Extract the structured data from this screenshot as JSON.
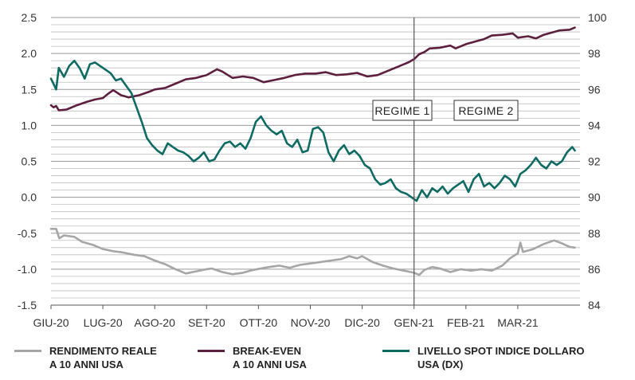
{
  "chart_data": {
    "type": "line",
    "title": "",
    "xlabel": "",
    "ylabel_left": "",
    "ylabel_right": "",
    "x_ticks": [
      "GIU-20",
      "LUG-20",
      "AGO-20",
      "SET-20",
      "OTT-20",
      "NOV-20",
      "DIC-20",
      "GEN-21",
      "FEB-21",
      "MAR-21"
    ],
    "y_left": {
      "ticks": [
        "2.5",
        "2.0",
        "1.5",
        "1.0",
        "0.5",
        "0.0",
        "-0.5",
        "-1.0",
        "-1.5"
      ],
      "range": [
        -1.5,
        2.5
      ]
    },
    "y_right": {
      "ticks": [
        "100",
        "98",
        "96",
        "94",
        "92",
        "90",
        "88",
        "86",
        "84"
      ],
      "range": [
        84,
        100
      ]
    },
    "grid": true,
    "x_range_months": [
      0,
      10.2
    ],
    "annotations": [
      {
        "id": "regime-1",
        "text": "REGIME 1",
        "x": 7.0
      },
      {
        "id": "regime-2",
        "text": "REGIME 2",
        "x": 7.0
      }
    ],
    "series": [
      {
        "name": "RENDIMENTO REALE\nA 10 ANNI USA",
        "axis": "left",
        "color": "#a6a6a6",
        "points": [
          [
            0,
            -0.44
          ],
          [
            0.1,
            -0.44
          ],
          [
            0.16,
            -0.57
          ],
          [
            0.25,
            -0.53
          ],
          [
            0.45,
            -0.55
          ],
          [
            0.6,
            -0.62
          ],
          [
            0.8,
            -0.66
          ],
          [
            1.0,
            -0.72
          ],
          [
            1.2,
            -0.75
          ],
          [
            1.4,
            -0.77
          ],
          [
            1.6,
            -0.8
          ],
          [
            1.8,
            -0.82
          ],
          [
            2.0,
            -0.88
          ],
          [
            2.2,
            -0.93
          ],
          [
            2.4,
            -1.0
          ],
          [
            2.6,
            -1.06
          ],
          [
            2.8,
            -1.03
          ],
          [
            3.0,
            -1.0
          ],
          [
            3.1,
            -0.99
          ],
          [
            3.3,
            -1.04
          ],
          [
            3.5,
            -1.07
          ],
          [
            3.7,
            -1.05
          ],
          [
            3.9,
            -1.01
          ],
          [
            4.2,
            -0.97
          ],
          [
            4.4,
            -0.95
          ],
          [
            4.6,
            -0.98
          ],
          [
            4.8,
            -0.94
          ],
          [
            5.0,
            -0.92
          ],
          [
            5.2,
            -0.9
          ],
          [
            5.4,
            -0.88
          ],
          [
            5.6,
            -0.86
          ],
          [
            5.75,
            -0.82
          ],
          [
            5.9,
            -0.85
          ],
          [
            6.0,
            -0.82
          ],
          [
            6.2,
            -0.9
          ],
          [
            6.4,
            -0.95
          ],
          [
            6.6,
            -0.99
          ],
          [
            6.8,
            -1.02
          ],
          [
            7.0,
            -1.05
          ],
          [
            7.1,
            -1.08
          ],
          [
            7.2,
            -1.01
          ],
          [
            7.35,
            -0.97
          ],
          [
            7.5,
            -0.99
          ],
          [
            7.7,
            -1.04
          ],
          [
            7.9,
            -1.0
          ],
          [
            8.1,
            -1.02
          ],
          [
            8.3,
            -1.0
          ],
          [
            8.5,
            -1.02
          ],
          [
            8.7,
            -0.95
          ],
          [
            8.85,
            -0.85
          ],
          [
            9.0,
            -0.78
          ],
          [
            9.05,
            -0.63
          ],
          [
            9.1,
            -0.76
          ],
          [
            9.3,
            -0.72
          ],
          [
            9.5,
            -0.65
          ],
          [
            9.7,
            -0.6
          ],
          [
            9.85,
            -0.64
          ],
          [
            10.0,
            -0.69
          ],
          [
            10.1,
            -0.7
          ]
        ]
      },
      {
        "name": "BREAK-EVEN\nA 10 ANNI USA",
        "axis": "left",
        "color": "#5c1f3e",
        "points": [
          [
            0,
            1.28
          ],
          [
            0.05,
            1.25
          ],
          [
            0.1,
            1.27
          ],
          [
            0.15,
            1.21
          ],
          [
            0.3,
            1.22
          ],
          [
            0.5,
            1.28
          ],
          [
            0.7,
            1.33
          ],
          [
            0.85,
            1.36
          ],
          [
            1.0,
            1.38
          ],
          [
            1.1,
            1.44
          ],
          [
            1.2,
            1.49
          ],
          [
            1.35,
            1.42
          ],
          [
            1.5,
            1.39
          ],
          [
            1.7,
            1.42
          ],
          [
            1.9,
            1.47
          ],
          [
            2.0,
            1.5
          ],
          [
            2.2,
            1.52
          ],
          [
            2.4,
            1.58
          ],
          [
            2.6,
            1.64
          ],
          [
            2.8,
            1.66
          ],
          [
            3.0,
            1.7
          ],
          [
            3.2,
            1.78
          ],
          [
            3.3,
            1.75
          ],
          [
            3.5,
            1.66
          ],
          [
            3.7,
            1.68
          ],
          [
            3.9,
            1.66
          ],
          [
            4.1,
            1.6
          ],
          [
            4.3,
            1.63
          ],
          [
            4.5,
            1.66
          ],
          [
            4.7,
            1.7
          ],
          [
            4.9,
            1.72
          ],
          [
            5.1,
            1.72
          ],
          [
            5.3,
            1.74
          ],
          [
            5.5,
            1.7
          ],
          [
            5.7,
            1.71
          ],
          [
            5.9,
            1.73
          ],
          [
            6.1,
            1.68
          ],
          [
            6.3,
            1.7
          ],
          [
            6.5,
            1.76
          ],
          [
            6.7,
            1.82
          ],
          [
            6.9,
            1.88
          ],
          [
            7.0,
            1.92
          ],
          [
            7.1,
            1.99
          ],
          [
            7.2,
            2.02
          ],
          [
            7.3,
            2.07
          ],
          [
            7.5,
            2.08
          ],
          [
            7.7,
            2.11
          ],
          [
            7.8,
            2.07
          ],
          [
            8.0,
            2.13
          ],
          [
            8.2,
            2.17
          ],
          [
            8.35,
            2.2
          ],
          [
            8.5,
            2.25
          ],
          [
            8.7,
            2.26
          ],
          [
            8.9,
            2.28
          ],
          [
            9.0,
            2.22
          ],
          [
            9.2,
            2.24
          ],
          [
            9.35,
            2.21
          ],
          [
            9.5,
            2.26
          ],
          [
            9.65,
            2.29
          ],
          [
            9.8,
            2.32
          ],
          [
            10.0,
            2.33
          ],
          [
            10.1,
            2.36
          ]
        ]
      },
      {
        "name": "LIVELLO SPOT INDICE DOLLARO\nUSA (DX)",
        "axis": "right",
        "color": "#0e6b63",
        "points": [
          [
            0,
            96.6
          ],
          [
            0.05,
            96.3
          ],
          [
            0.1,
            96.0
          ],
          [
            0.15,
            97.2
          ],
          [
            0.25,
            96.7
          ],
          [
            0.35,
            97.3
          ],
          [
            0.45,
            97.6
          ],
          [
            0.55,
            97.2
          ],
          [
            0.65,
            96.6
          ],
          [
            0.75,
            97.4
          ],
          [
            0.85,
            97.5
          ],
          [
            0.95,
            97.3
          ],
          [
            1.05,
            97.1
          ],
          [
            1.15,
            96.9
          ],
          [
            1.25,
            96.5
          ],
          [
            1.35,
            96.6
          ],
          [
            1.45,
            96.2
          ],
          [
            1.55,
            95.8
          ],
          [
            1.65,
            95.0
          ],
          [
            1.75,
            94.2
          ],
          [
            1.85,
            93.3
          ],
          [
            1.95,
            92.9
          ],
          [
            2.05,
            92.6
          ],
          [
            2.15,
            92.4
          ],
          [
            2.25,
            93.0
          ],
          [
            2.35,
            92.8
          ],
          [
            2.45,
            92.6
          ],
          [
            2.55,
            92.5
          ],
          [
            2.65,
            92.3
          ],
          [
            2.75,
            92.0
          ],
          [
            2.85,
            92.2
          ],
          [
            2.95,
            92.5
          ],
          [
            3.05,
            92.0
          ],
          [
            3.15,
            92.1
          ],
          [
            3.25,
            92.6
          ],
          [
            3.35,
            93.0
          ],
          [
            3.45,
            93.1
          ],
          [
            3.55,
            92.8
          ],
          [
            3.65,
            93.0
          ],
          [
            3.75,
            92.7
          ],
          [
            3.85,
            93.3
          ],
          [
            3.95,
            94.2
          ],
          [
            4.05,
            94.5
          ],
          [
            4.15,
            94.0
          ],
          [
            4.25,
            93.7
          ],
          [
            4.35,
            93.5
          ],
          [
            4.45,
            93.7
          ],
          [
            4.55,
            93.0
          ],
          [
            4.65,
            92.8
          ],
          [
            4.75,
            93.2
          ],
          [
            4.85,
            92.5
          ],
          [
            4.95,
            92.6
          ],
          [
            5.05,
            93.8
          ],
          [
            5.15,
            93.9
          ],
          [
            5.25,
            93.6
          ],
          [
            5.35,
            92.5
          ],
          [
            5.45,
            92.0
          ],
          [
            5.55,
            92.6
          ],
          [
            5.65,
            92.9
          ],
          [
            5.75,
            92.4
          ],
          [
            5.85,
            92.6
          ],
          [
            5.95,
            92.3
          ],
          [
            6.05,
            91.8
          ],
          [
            6.15,
            91.6
          ],
          [
            6.25,
            91.0
          ],
          [
            6.35,
            90.7
          ],
          [
            6.45,
            90.8
          ],
          [
            6.55,
            91.0
          ],
          [
            6.65,
            90.5
          ],
          [
            6.75,
            90.3
          ],
          [
            6.85,
            90.2
          ],
          [
            6.95,
            90.0
          ],
          [
            7.05,
            89.8
          ],
          [
            7.15,
            90.4
          ],
          [
            7.25,
            90.0
          ],
          [
            7.35,
            90.5
          ],
          [
            7.45,
            90.3
          ],
          [
            7.55,
            90.6
          ],
          [
            7.65,
            90.2
          ],
          [
            7.75,
            90.5
          ],
          [
            7.85,
            90.7
          ],
          [
            7.95,
            90.9
          ],
          [
            8.05,
            90.3
          ],
          [
            8.15,
            91.0
          ],
          [
            8.25,
            91.3
          ],
          [
            8.35,
            90.6
          ],
          [
            8.45,
            90.8
          ],
          [
            8.55,
            90.5
          ],
          [
            8.65,
            90.8
          ],
          [
            8.75,
            91.2
          ],
          [
            8.85,
            91.0
          ],
          [
            8.95,
            90.6
          ],
          [
            9.05,
            91.3
          ],
          [
            9.15,
            91.5
          ],
          [
            9.25,
            91.8
          ],
          [
            9.35,
            92.2
          ],
          [
            9.45,
            91.8
          ],
          [
            9.55,
            91.6
          ],
          [
            9.65,
            92.0
          ],
          [
            9.75,
            91.8
          ],
          [
            9.85,
            92.0
          ],
          [
            9.95,
            92.5
          ],
          [
            10.05,
            92.8
          ],
          [
            10.1,
            92.6
          ]
        ]
      }
    ]
  }
}
